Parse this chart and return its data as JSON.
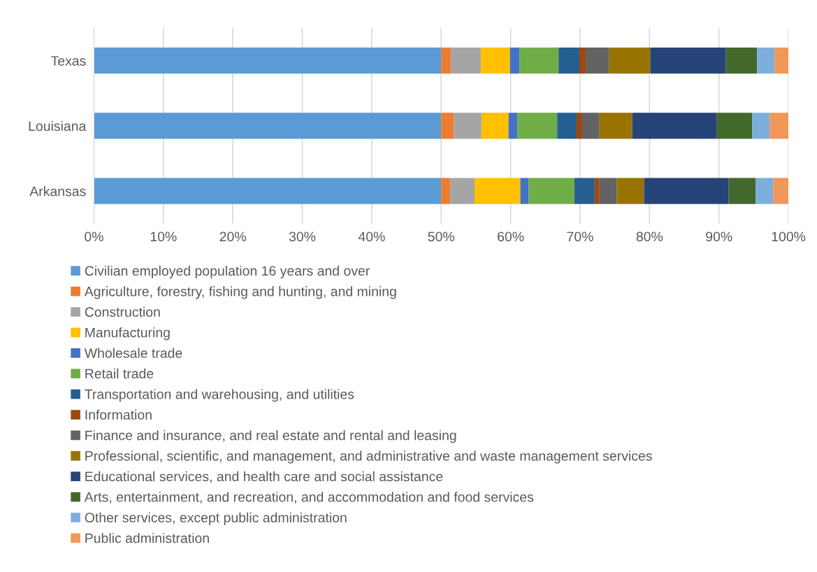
{
  "chart_data": {
    "type": "bar",
    "orientation": "horizontal",
    "stacked": true,
    "categories": [
      "Texas",
      "Louisiana",
      "Arkansas"
    ],
    "series": [
      {
        "name": "Civilian employed population 16 years and over",
        "color": "#5b9bd5",
        "values": [
          50,
          50,
          50
        ]
      },
      {
        "name": "Agriculture, forestry, fishing and hunting, and mining",
        "color": "#ed7d31",
        "values": [
          1.4,
          1.8,
          1.3
        ]
      },
      {
        "name": "Construction",
        "color": "#a5a5a5",
        "values": [
          4.3,
          4.0,
          3.5
        ]
      },
      {
        "name": "Manufacturing",
        "color": "#ffc000",
        "values": [
          4.2,
          3.9,
          6.6
        ]
      },
      {
        "name": "Wholesale trade",
        "color": "#4472c4",
        "values": [
          1.4,
          1.3,
          1.2
        ]
      },
      {
        "name": "Retail trade",
        "color": "#70ad47",
        "values": [
          5.6,
          5.7,
          6.6
        ]
      },
      {
        "name": "Transportation and warehousing, and utilities",
        "color": "#255e91",
        "values": [
          3.0,
          2.8,
          2.9
        ]
      },
      {
        "name": "Information",
        "color": "#9e480e",
        "values": [
          0.9,
          0.8,
          0.7
        ]
      },
      {
        "name": "Finance and insurance, and real estate and rental and leasing",
        "color": "#636363",
        "values": [
          3.4,
          2.5,
          2.5
        ]
      },
      {
        "name": "Professional, scientific, and management, and administrative and waste management services",
        "color": "#997300",
        "values": [
          5.9,
          4.7,
          3.9
        ]
      },
      {
        "name": "Educational services, and health care and social assistance",
        "color": "#264478",
        "values": [
          10.9,
          12.2,
          12.2
        ]
      },
      {
        "name": "Arts, entertainment, and recreation, and accommodation and food services",
        "color": "#43682b",
        "values": [
          4.5,
          5.1,
          3.9
        ]
      },
      {
        "name": "Other services, except public administration",
        "color": "#7cafdd",
        "values": [
          2.5,
          2.5,
          2.5
        ]
      },
      {
        "name": "Public administration",
        "color": "#f1975a",
        "values": [
          2.0,
          2.7,
          2.2
        ]
      }
    ],
    "xlim": [
      0,
      100
    ],
    "xticks": [
      {
        "value": 0,
        "label": "0%"
      },
      {
        "value": 10,
        "label": "10%"
      },
      {
        "value": 20,
        "label": "20%"
      },
      {
        "value": 30,
        "label": "30%"
      },
      {
        "value": 40,
        "label": "40%"
      },
      {
        "value": 50,
        "label": "50%"
      },
      {
        "value": 60,
        "label": "60%"
      },
      {
        "value": 70,
        "label": "70%"
      },
      {
        "value": 80,
        "label": "80%"
      },
      {
        "value": 90,
        "label": "90%"
      },
      {
        "value": 100,
        "label": "100%"
      }
    ],
    "grid": "x",
    "legend": "bottom"
  }
}
